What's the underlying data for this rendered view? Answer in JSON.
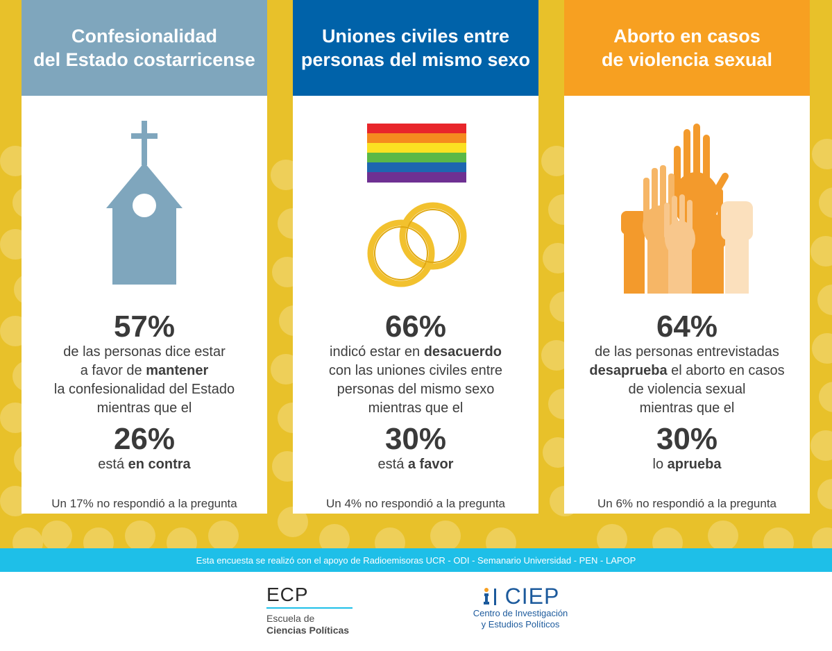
{
  "panels": [
    {
      "title": "Confesionalidad\ndel Estado costarricense",
      "header_color": "#7fa6bd",
      "icon": "church-icon",
      "pct1": "57%",
      "desc1_lines": [
        [
          "de las personas dice estar"
        ],
        [
          "a favor de ",
          "mantener"
        ],
        [
          "la confesionalidad del Estado"
        ],
        [
          "mientras que el"
        ]
      ],
      "pct2": "26%",
      "desc2": [
        "está ",
        "en contra"
      ],
      "note": "Un 17% no respondió a la pregunta"
    },
    {
      "title": "Uniones civiles entre\npersonas del mismo sexo",
      "header_color": "#0062a9",
      "icon": "rainbow-flag-icon",
      "icon2": "wedding-rings-icon",
      "pct1": "66%",
      "desc1_lines": [
        [
          "indicó estar en ",
          "desacuerdo"
        ],
        [
          "con las uniones civiles entre"
        ],
        [
          "personas del mismo sexo"
        ],
        [
          "mientras que el"
        ]
      ],
      "pct2": "30%",
      "desc2": [
        "está ",
        "a favor"
      ],
      "note": "Un 4% no respondió a la pregunta"
    },
    {
      "title": "Aborto en casos\nde violencia sexual",
      "header_color": "#f7a021",
      "icon": "raised-hands-icon",
      "pct1": "64%",
      "desc1_lines": [
        [
          "de las personas entrevistadas"
        ],
        [
          "",
          "desaprueba",
          " el aborto en casos"
        ],
        [
          "de violencia sexual"
        ],
        [
          "mientras que el"
        ]
      ],
      "pct2": "30%",
      "desc2": [
        "lo ",
        "aprueba"
      ],
      "note": "Un 6% no respondió a la pregunta"
    }
  ],
  "footer": {
    "credits": "Esta encuesta se realizó con el apoyo de Radioemisoras UCR - ODI - Semanario Universidad - PEN - LAPOP"
  },
  "logos": {
    "ecp": {
      "abbr": "ECP",
      "line1": "Escuela de",
      "line2": "Ciencias Políticas"
    },
    "ciep": {
      "abbr": "CIEP",
      "line1": "Centro de Investigación",
      "line2": "y Estudios Políticos"
    }
  },
  "colors": {
    "background": "#e8c12a",
    "footer_bar": "#1ebfe8",
    "church": "#7fa6bd",
    "rings": "#f2c12e"
  }
}
